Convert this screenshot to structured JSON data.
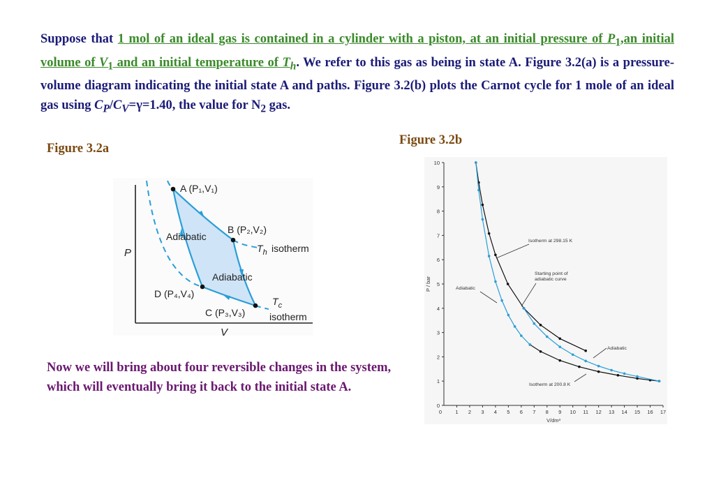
{
  "paragraph": {
    "t1": "Suppose that ",
    "h1": "1 mol of an ideal gas is contained in a cylinder with a piston, at an initial pressure of ",
    "h_P": "P",
    "h_P_sub": "1",
    "h2": ",an initial volume of ",
    "h_V": "V",
    "h_V_sub": "1",
    "h3": " and an initial temperature of ",
    "h_T": "T",
    "h_T_sub": "h",
    "t2": ". We refer to this gas as being in state A. Figure 3.2(a) is a pressure-volume diagram indicating the initial state A and paths. Figure 3.2(b) plots the Carnot cycle for 1 mole of an ideal gas using ",
    "cp": "C",
    "cp_sub": "P",
    "slash": "/",
    "cv": "C",
    "cv_sub": "V",
    "t3": "=γ=1.40, the value for N",
    "n2_sub": "2",
    "t4": " gas."
  },
  "figure_a": {
    "label": "Figure 3.2a",
    "axis_p": "P",
    "axis_v": "V",
    "state_a": "A (P₁,V₁)",
    "state_b": "B (P₂,V₂)",
    "state_c": "C (P₃,V₃)",
    "state_d": "D (P₄,V₄)",
    "adiabatic_1": "Adiabatic",
    "adiabatic_2": "Adiabatic",
    "th_label": "T",
    "th_sub": "h",
    "th_isotherm": "isotherm",
    "tc_label": "T",
    "tc_sub": "c",
    "tc_isotherm": "isotherm"
  },
  "figure_b": {
    "label": "Figure 3.2b"
  },
  "chart_data": {
    "type": "line",
    "xlabel": "V/dm³",
    "ylabel": "P / bar",
    "xlim": [
      0,
      17
    ],
    "ylim": [
      0,
      10
    ],
    "xticks": [
      1,
      2,
      3,
      4,
      5,
      6,
      7,
      8,
      9,
      10,
      11,
      12,
      13,
      14,
      15,
      16,
      17
    ],
    "yticks": [
      0,
      1,
      2,
      3,
      4,
      5,
      6,
      7,
      8,
      9,
      10
    ],
    "series": [
      {
        "name": "Isotherm at 298.15 K",
        "color": "#111111",
        "x": [
          2.48,
          2.7,
          3.0,
          3.5,
          4.0,
          4.96,
          6.2,
          7.5,
          9.0,
          11.0
        ],
        "y": [
          10.0,
          9.18,
          8.26,
          7.08,
          6.2,
          5.0,
          4.0,
          3.31,
          2.75,
          2.25
        ]
      },
      {
        "name": "Isotherm at 200.8 K",
        "color": "#111111",
        "x": [
          6.68,
          7.5,
          9.0,
          10.5,
          12.0,
          13.5,
          15.0,
          16.0,
          16.7
        ],
        "y": [
          2.5,
          2.22,
          1.85,
          1.59,
          1.39,
          1.24,
          1.11,
          1.04,
          1.0
        ]
      },
      {
        "name": "Adiabatic",
        "color": "#2a9ed8",
        "x": [
          2.48,
          2.7,
          3.0,
          3.5,
          4.0,
          4.5,
          5.0,
          5.5,
          6.0,
          6.68
        ],
        "y": [
          10.0,
          8.87,
          7.66,
          6.15,
          5.1,
          4.32,
          3.72,
          3.25,
          2.87,
          2.5
        ]
      },
      {
        "name": "Adiabatic",
        "color": "#2a9ed8",
        "x": [
          6.2,
          7.0,
          8.0,
          9.0,
          10.0,
          11.0,
          12.0,
          13.0,
          14.0,
          15.0,
          16.7
        ],
        "y": [
          4.0,
          3.37,
          2.83,
          2.41,
          2.09,
          1.83,
          1.62,
          1.45,
          1.31,
          1.19,
          1.0
        ]
      }
    ],
    "annotations": [
      {
        "text": "Isotherm  at 298.15 K"
      },
      {
        "text": "Starting point of adiabatic curve"
      },
      {
        "text": "Adiabatic"
      },
      {
        "text": "Adiabatic"
      },
      {
        "text": "Isotherm  at 200.8 K"
      }
    ],
    "grid": false
  },
  "lower_text": "Now we will bring about four reversible changes in the system, which will eventually bring it back to the initial state A.",
  "colors": {
    "body_text": "#1b1b78",
    "highlight": "#3a8a2a",
    "figure_label": "#7a4a12",
    "lower_text": "#6a1870",
    "curve_blue": "#2a9ed8",
    "cycle_fill": "#cfe4f7"
  }
}
